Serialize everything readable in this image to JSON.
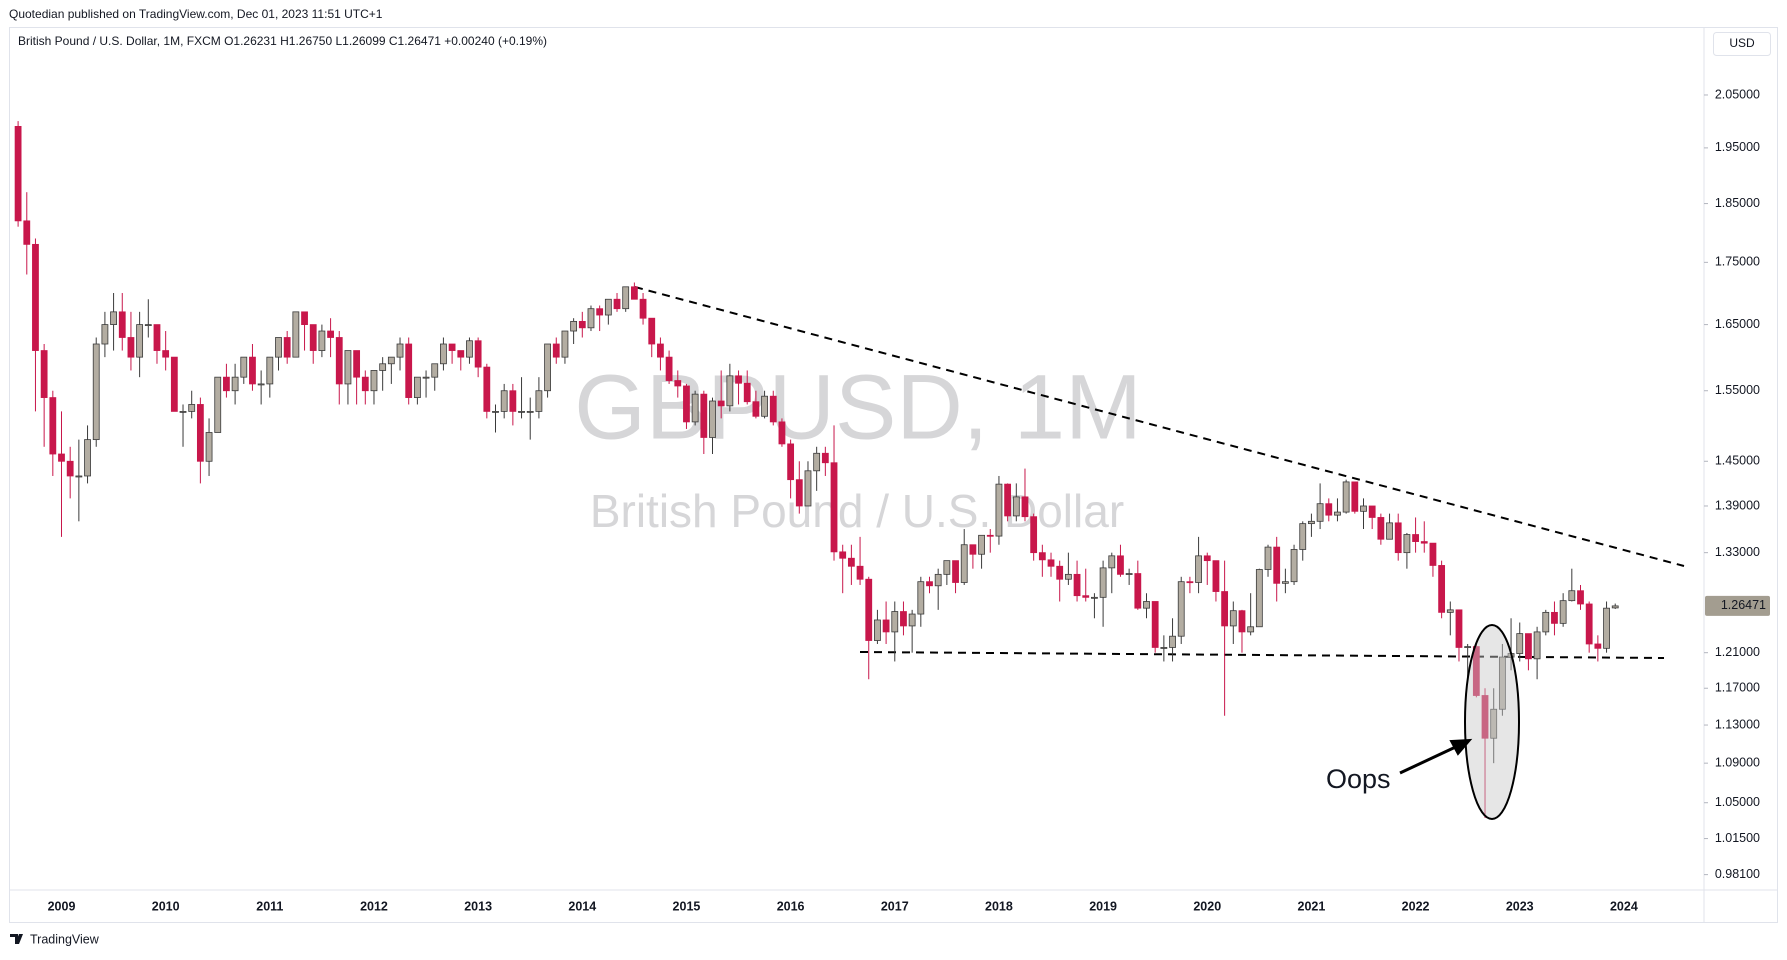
{
  "header": "Quotedian published on TradingView.com, Dec 01, 2023 11:51 UTC+1",
  "footer": "TradingView",
  "chart_data": {
    "type": "candlestick",
    "legend": "British Pound / U.S. Dollar, 1M, FXCM  O1.26231  H1.26750  L1.26099  C1.26471  +0.00240 (+0.19%)",
    "currency": "USD",
    "watermark": "GBPUSD, 1M",
    "watermark_subtitle": "British Pound / U.S. Dollar",
    "annotation": "Oops",
    "log_scale": true,
    "grid": false,
    "up_color": "#b3ada2",
    "up_border": "#3a3a3a",
    "down_color": "#c8174b",
    "ylim": [
      0.9705,
      2.184
    ],
    "yticks": [
      {
        "value": 2.05,
        "label": "2.05000"
      },
      {
        "value": 1.95,
        "label": "1.95000"
      },
      {
        "value": 1.85,
        "label": "1.85000"
      },
      {
        "value": 1.75,
        "label": "1.75000"
      },
      {
        "value": 1.65,
        "label": "1.65000"
      },
      {
        "value": 1.55,
        "label": "1.55000"
      },
      {
        "value": 1.45,
        "label": "1.45000"
      },
      {
        "value": 1.39,
        "label": "1.39000"
      },
      {
        "value": 1.33,
        "label": "1.33000"
      },
      {
        "value": 1.21,
        "label": "1.21000"
      },
      {
        "value": 1.17,
        "label": "1.17000"
      },
      {
        "value": 1.13,
        "label": "1.13000"
      },
      {
        "value": 1.09,
        "label": "1.09000"
      },
      {
        "value": 1.05,
        "label": "1.05000"
      },
      {
        "value": 1.015,
        "label": "1.01500"
      },
      {
        "value": 0.981,
        "label": "0.98100"
      }
    ],
    "last_price": 1.26471,
    "categories": [
      null,
      null,
      null,
      null,
      null,
      "2009",
      null,
      null,
      null,
      null,
      null,
      null,
      null,
      null,
      null,
      null,
      null,
      "2010",
      null,
      null,
      null,
      null,
      null,
      null,
      null,
      null,
      null,
      null,
      null,
      "2011",
      null,
      null,
      null,
      null,
      null,
      null,
      null,
      null,
      null,
      null,
      null,
      "2012",
      null,
      null,
      null,
      null,
      null,
      null,
      null,
      null,
      null,
      null,
      null,
      "2013",
      null,
      null,
      null,
      null,
      null,
      null,
      null,
      null,
      null,
      null,
      null,
      "2014",
      null,
      null,
      null,
      null,
      null,
      null,
      null,
      null,
      null,
      null,
      null,
      "2015",
      null,
      null,
      null,
      null,
      null,
      null,
      null,
      null,
      null,
      null,
      null,
      "2016",
      null,
      null,
      null,
      null,
      null,
      null,
      null,
      null,
      null,
      null,
      null,
      "2017",
      null,
      null,
      null,
      null,
      null,
      null,
      null,
      null,
      null,
      null,
      null,
      "2018",
      null,
      null,
      null,
      null,
      null,
      null,
      null,
      null,
      null,
      null,
      null,
      "2019",
      null,
      null,
      null,
      null,
      null,
      null,
      null,
      null,
      null,
      null,
      null,
      "2020",
      null,
      null,
      null,
      null,
      null,
      null,
      null,
      null,
      null,
      null,
      null,
      "2021",
      null,
      null,
      null,
      null,
      null,
      null,
      null,
      null,
      null,
      null,
      null,
      "2022",
      null,
      null,
      null,
      null,
      null,
      null,
      null,
      null,
      null,
      null,
      null,
      "2023",
      null,
      null,
      null,
      null,
      null,
      null,
      null,
      null,
      null,
      null,
      null,
      "2024"
    ],
    "open": [
      1.99,
      1.82,
      1.78,
      1.61,
      1.54,
      1.46,
      1.45,
      1.43,
      1.43,
      1.48,
      1.62,
      1.65,
      1.67,
      1.63,
      1.6,
      1.65,
      1.65,
      1.61,
      1.6,
      1.52,
      1.52,
      1.53,
      1.45,
      1.49,
      1.57,
      1.55,
      1.57,
      1.6,
      1.56,
      1.56,
      1.6,
      1.63,
      1.6,
      1.67,
      1.65,
      1.61,
      1.64,
      1.63,
      1.56,
      1.61,
      1.57,
      1.55,
      1.58,
      1.59,
      1.6,
      1.62,
      1.54,
      1.57,
      1.57,
      1.59,
      1.62,
      1.61,
      1.6,
      1.625,
      1.585,
      1.52,
      1.52,
      1.55,
      1.52,
      1.52,
      1.52,
      1.55,
      1.62,
      1.6,
      1.64,
      1.655,
      1.645,
      1.675,
      1.665,
      1.69,
      1.675,
      1.71,
      1.69,
      1.66,
      1.62,
      1.6,
      1.565,
      1.557,
      1.505,
      1.545,
      1.483,
      1.535,
      1.528,
      1.572,
      1.561,
      1.534,
      1.513,
      1.542,
      1.505,
      1.474,
      1.425,
      1.39,
      1.437,
      1.461,
      1.448,
      1.331,
      1.323,
      1.313,
      1.297,
      1.224,
      1.248,
      1.234,
      1.258,
      1.241,
      1.255,
      1.294,
      1.289,
      1.303,
      1.32,
      1.293,
      1.34,
      1.328,
      1.352,
      1.351,
      1.419,
      1.377,
      1.402,
      1.376,
      1.33,
      1.321,
      1.313,
      1.297,
      1.303,
      1.277,
      1.275,
      1.275,
      1.311,
      1.326,
      1.303,
      1.304,
      1.262,
      1.27,
      1.216,
      1.216,
      1.229,
      1.294,
      1.293,
      1.326,
      1.32,
      1.282,
      1.241,
      1.259,
      1.234,
      1.24,
      1.309,
      1.337,
      1.292,
      1.294,
      1.334,
      1.367,
      1.37,
      1.393,
      1.378,
      1.382,
      1.422,
      1.383,
      1.39,
      1.375,
      1.347,
      1.368,
      1.33,
      1.353,
      1.344,
      1.342,
      1.314,
      1.257,
      1.26,
      1.216,
      1.217,
      1.162,
      1.116,
      1.147,
      1.205,
      1.209,
      1.232,
      1.203,
      1.234,
      1.257,
      1.244,
      1.271,
      1.283,
      1.267,
      1.22,
      1.215,
      1.26231,
      null
    ],
    "high": [
      2.0,
      1.87,
      1.79,
      1.62,
      1.55,
      1.52,
      1.47,
      1.48,
      1.5,
      1.63,
      1.67,
      1.7,
      1.7,
      1.67,
      1.67,
      1.69,
      1.65,
      1.64,
      1.6,
      1.53,
      1.55,
      1.54,
      1.51,
      1.57,
      1.59,
      1.59,
      1.6,
      1.62,
      1.58,
      1.6,
      1.63,
      1.64,
      1.67,
      1.67,
      1.65,
      1.65,
      1.66,
      1.64,
      1.61,
      1.61,
      1.58,
      1.58,
      1.6,
      1.6,
      1.63,
      1.63,
      1.57,
      1.58,
      1.59,
      1.63,
      1.62,
      1.61,
      1.63,
      1.63,
      1.59,
      1.53,
      1.56,
      1.56,
      1.57,
      1.54,
      1.57,
      1.62,
      1.63,
      1.64,
      1.66,
      1.67,
      1.68,
      1.68,
      1.69,
      1.7,
      1.71,
      1.717,
      1.7,
      1.66,
      1.63,
      1.61,
      1.58,
      1.56,
      1.55,
      1.55,
      1.54,
      1.58,
      1.59,
      1.58,
      1.58,
      1.55,
      1.55,
      1.55,
      1.51,
      1.48,
      1.45,
      1.45,
      1.47,
      1.47,
      1.5,
      1.34,
      1.34,
      1.35,
      1.3,
      1.26,
      1.27,
      1.27,
      1.27,
      1.26,
      1.3,
      1.3,
      1.31,
      1.32,
      1.32,
      1.36,
      1.34,
      1.35,
      1.36,
      1.43,
      1.42,
      1.42,
      1.44,
      1.38,
      1.34,
      1.33,
      1.32,
      1.33,
      1.32,
      1.31,
      1.28,
      1.32,
      1.33,
      1.34,
      1.31,
      1.32,
      1.28,
      1.27,
      1.23,
      1.25,
      1.3,
      1.3,
      1.35,
      1.33,
      1.32,
      1.32,
      1.27,
      1.26,
      1.28,
      1.31,
      1.34,
      1.35,
      1.31,
      1.34,
      1.37,
      1.38,
      1.42,
      1.4,
      1.4,
      1.425,
      1.42,
      1.4,
      1.39,
      1.38,
      1.38,
      1.38,
      1.355,
      1.375,
      1.37,
      1.34,
      1.32,
      1.27,
      1.26,
      1.22,
      1.22,
      1.17,
      1.17,
      1.22,
      1.25,
      1.245,
      1.23,
      1.24,
      1.26,
      1.27,
      1.28,
      1.31,
      1.29,
      1.27,
      1.23,
      1.27,
      1.2675,
      null
    ],
    "low": [
      1.81,
      1.73,
      1.52,
      1.47,
      1.43,
      1.35,
      1.4,
      1.37,
      1.42,
      1.47,
      1.6,
      1.61,
      1.61,
      1.58,
      1.57,
      1.63,
      1.59,
      1.58,
      1.52,
      1.47,
      1.51,
      1.42,
      1.43,
      1.49,
      1.54,
      1.53,
      1.56,
      1.55,
      1.53,
      1.54,
      1.58,
      1.59,
      1.6,
      1.61,
      1.59,
      1.6,
      1.6,
      1.53,
      1.53,
      1.53,
      1.53,
      1.53,
      1.55,
      1.56,
      1.58,
      1.53,
      1.53,
      1.54,
      1.55,
      1.58,
      1.59,
      1.58,
      1.59,
      1.57,
      1.51,
      1.49,
      1.51,
      1.5,
      1.51,
      1.48,
      1.51,
      1.54,
      1.59,
      1.59,
      1.62,
      1.63,
      1.64,
      1.64,
      1.65,
      1.67,
      1.67,
      1.69,
      1.65,
      1.6,
      1.58,
      1.56,
      1.54,
      1.495,
      1.5,
      1.46,
      1.46,
      1.51,
      1.52,
      1.53,
      1.53,
      1.51,
      1.51,
      1.5,
      1.47,
      1.4,
      1.38,
      1.39,
      1.41,
      1.43,
      1.32,
      1.28,
      1.29,
      1.29,
      1.18,
      1.22,
      1.22,
      1.2,
      1.23,
      1.21,
      1.24,
      1.28,
      1.26,
      1.29,
      1.28,
      1.29,
      1.31,
      1.31,
      1.33,
      1.34,
      1.37,
      1.37,
      1.37,
      1.32,
      1.3,
      1.3,
      1.27,
      1.29,
      1.27,
      1.27,
      1.25,
      1.24,
      1.28,
      1.3,
      1.29,
      1.26,
      1.25,
      1.21,
      1.2,
      1.2,
      1.22,
      1.28,
      1.28,
      1.29,
      1.27,
      1.14,
      1.22,
      1.21,
      1.23,
      1.24,
      1.3,
      1.27,
      1.28,
      1.29,
      1.32,
      1.35,
      1.36,
      1.37,
      1.37,
      1.38,
      1.38,
      1.36,
      1.36,
      1.34,
      1.35,
      1.32,
      1.31,
      1.33,
      1.33,
      1.3,
      1.25,
      1.23,
      1.2,
      1.18,
      1.16,
      1.035,
      1.09,
      1.14,
      1.19,
      1.2,
      1.19,
      1.18,
      1.23,
      1.23,
      1.24,
      1.27,
      1.26,
      1.21,
      1.2,
      1.21,
      1.26099,
      null
    ],
    "close": [
      1.82,
      1.78,
      1.61,
      1.54,
      1.46,
      1.45,
      1.43,
      1.43,
      1.48,
      1.62,
      1.65,
      1.67,
      1.63,
      1.6,
      1.65,
      1.65,
      1.61,
      1.6,
      1.52,
      1.52,
      1.53,
      1.45,
      1.49,
      1.57,
      1.55,
      1.57,
      1.6,
      1.56,
      1.56,
      1.6,
      1.63,
      1.6,
      1.67,
      1.65,
      1.61,
      1.64,
      1.63,
      1.56,
      1.61,
      1.57,
      1.55,
      1.58,
      1.59,
      1.6,
      1.62,
      1.54,
      1.57,
      1.57,
      1.59,
      1.62,
      1.61,
      1.6,
      1.625,
      1.585,
      1.52,
      1.52,
      1.55,
      1.52,
      1.52,
      1.52,
      1.55,
      1.62,
      1.6,
      1.64,
      1.655,
      1.645,
      1.675,
      1.665,
      1.69,
      1.675,
      1.71,
      1.69,
      1.66,
      1.62,
      1.6,
      1.565,
      1.557,
      1.505,
      1.545,
      1.483,
      1.535,
      1.528,
      1.572,
      1.561,
      1.534,
      1.513,
      1.542,
      1.505,
      1.474,
      1.425,
      1.39,
      1.437,
      1.461,
      1.448,
      1.331,
      1.323,
      1.313,
      1.297,
      1.224,
      1.248,
      1.234,
      1.258,
      1.241,
      1.255,
      1.294,
      1.289,
      1.303,
      1.32,
      1.293,
      1.34,
      1.328,
      1.352,
      1.351,
      1.419,
      1.377,
      1.402,
      1.376,
      1.33,
      1.321,
      1.313,
      1.297,
      1.303,
      1.277,
      1.275,
      1.275,
      1.311,
      1.326,
      1.303,
      1.304,
      1.262,
      1.27,
      1.216,
      1.216,
      1.229,
      1.294,
      1.293,
      1.326,
      1.32,
      1.282,
      1.241,
      1.259,
      1.234,
      1.24,
      1.309,
      1.337,
      1.292,
      1.294,
      1.334,
      1.367,
      1.37,
      1.393,
      1.378,
      1.382,
      1.422,
      1.383,
      1.39,
      1.375,
      1.347,
      1.368,
      1.33,
      1.353,
      1.344,
      1.342,
      1.314,
      1.257,
      1.26,
      1.216,
      1.217,
      1.162,
      1.116,
      1.147,
      1.205,
      1.209,
      1.232,
      1.203,
      1.234,
      1.257,
      1.244,
      1.271,
      1.283,
      1.267,
      1.22,
      1.215,
      1.262,
      1.26471,
      null
    ]
  }
}
